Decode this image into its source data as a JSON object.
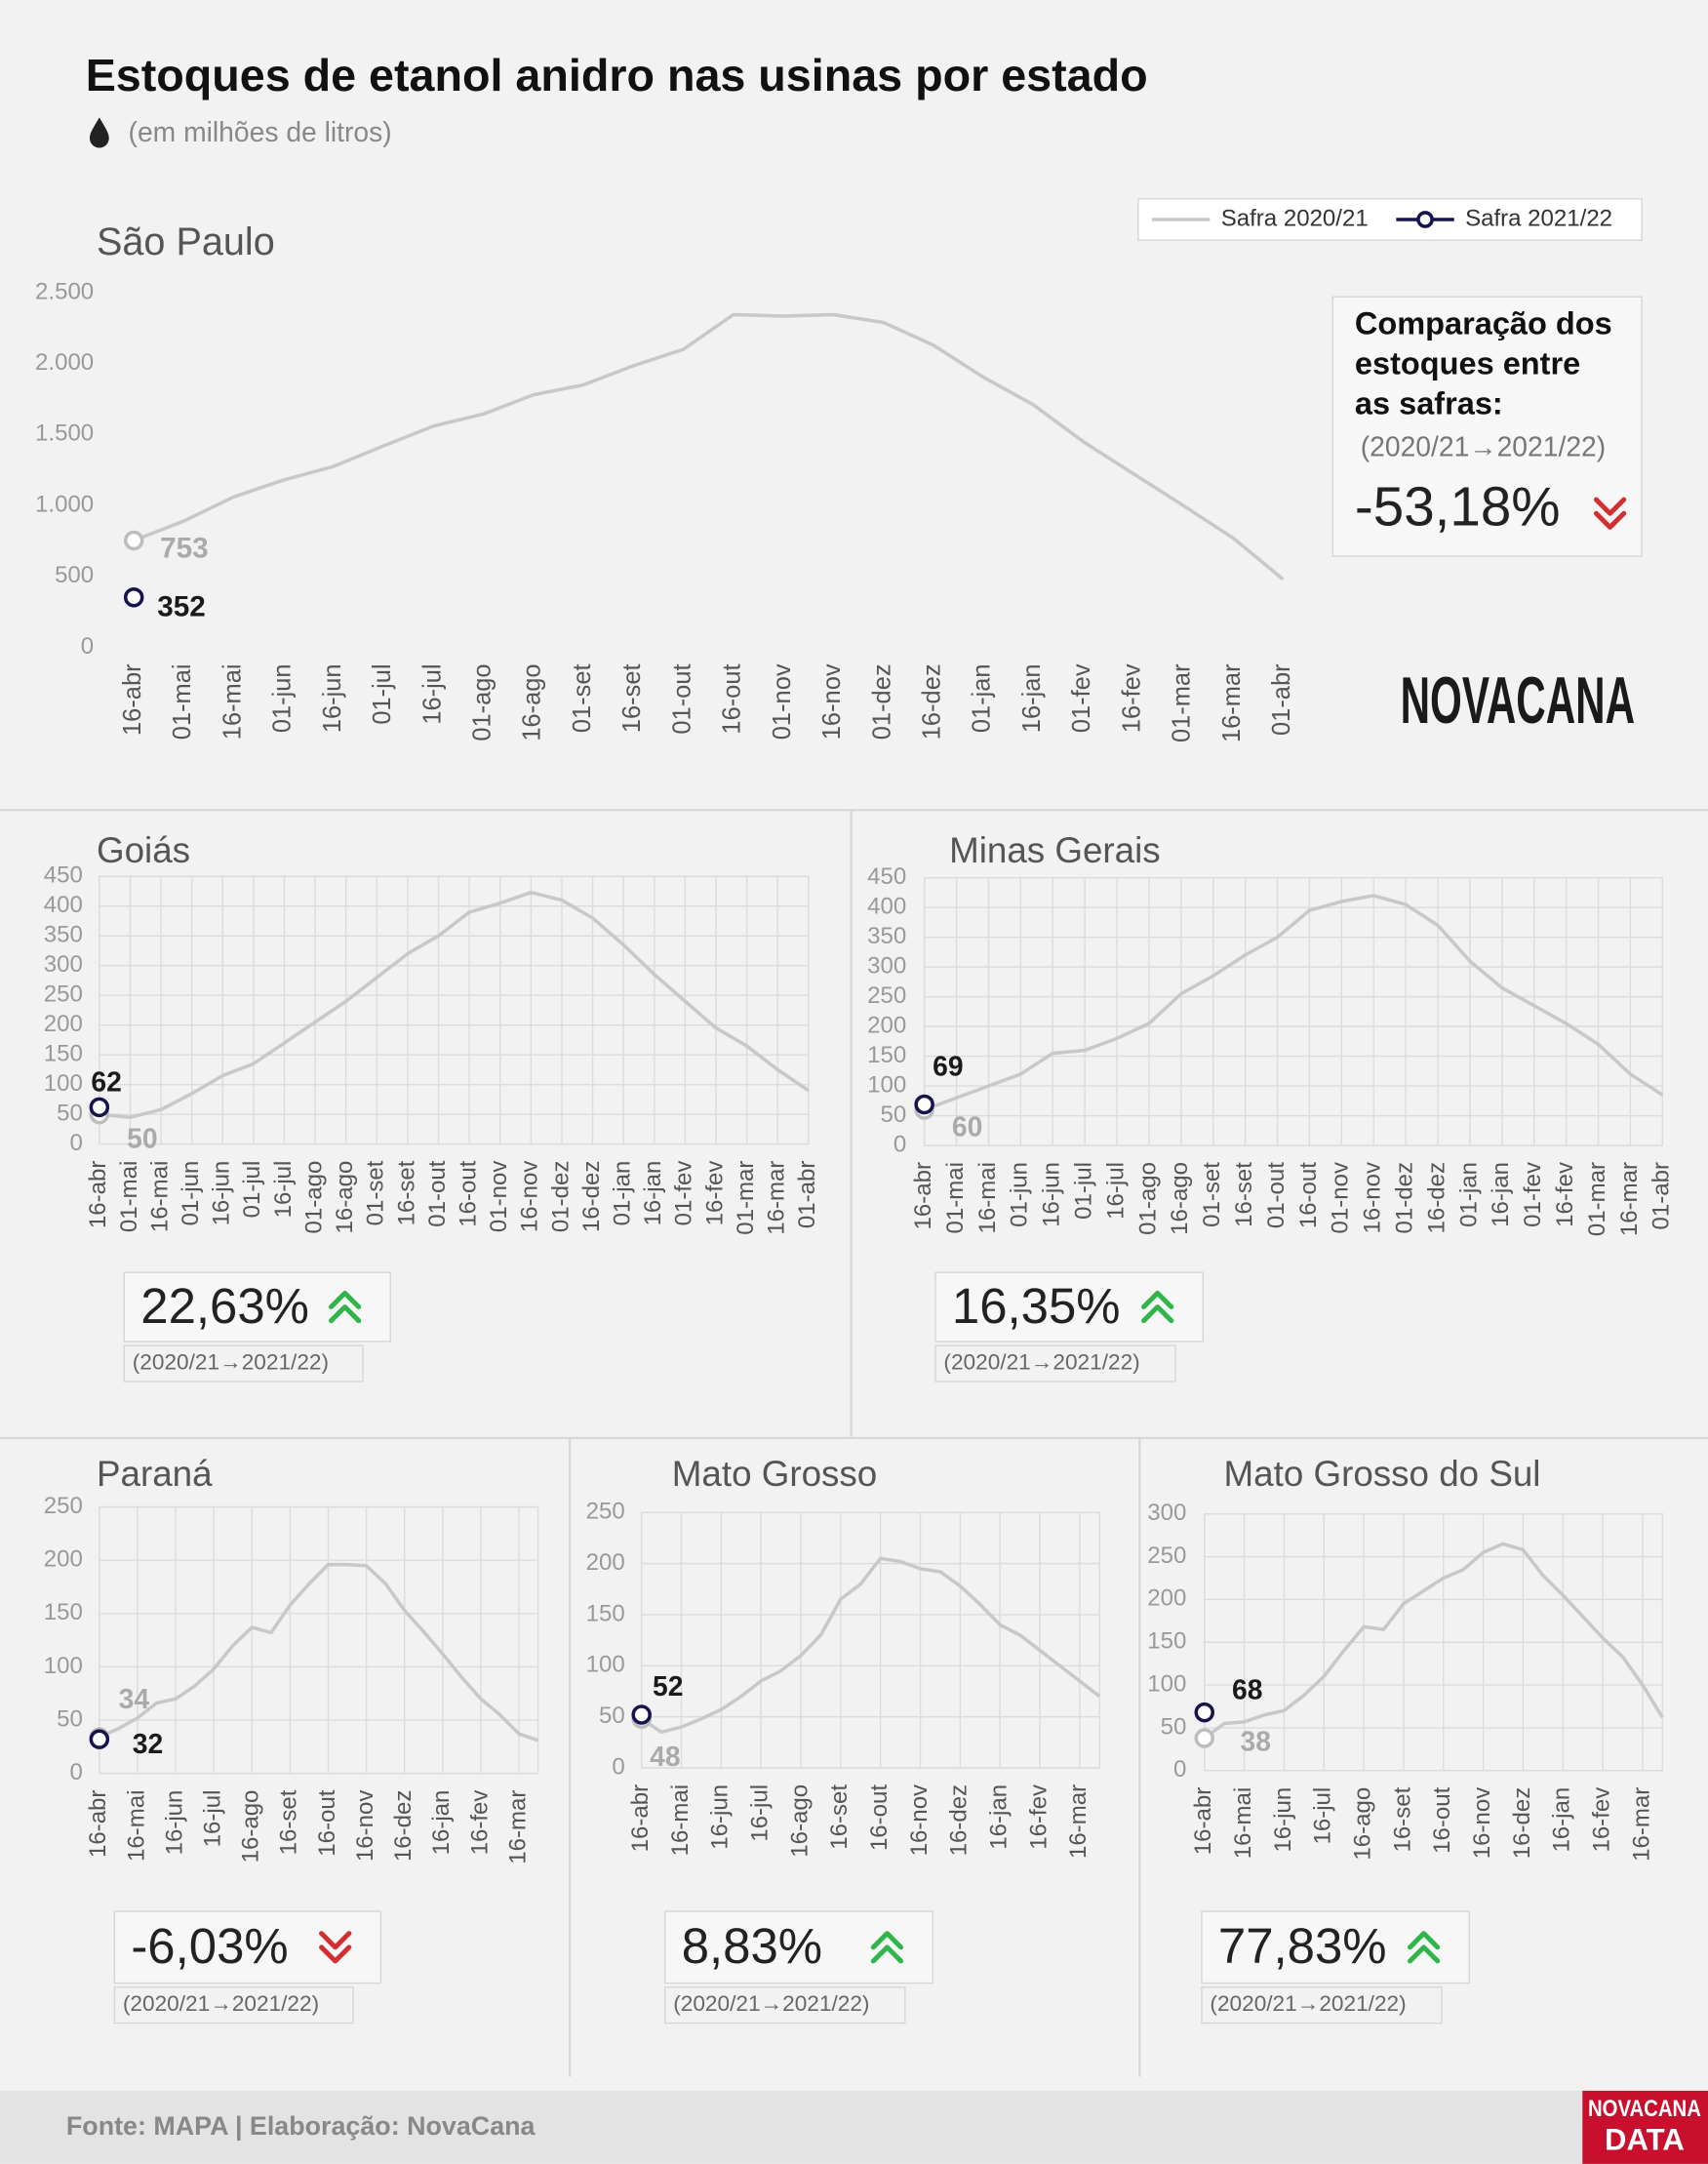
{
  "header": {
    "title": "Estoques de etanol anidro nas usinas por estado",
    "subtitle": "(em milhões de litros)"
  },
  "chart_data": [
    {
      "type": "line",
      "title": "São Paulo",
      "categories": [
        "16-abr",
        "01-mai",
        "16-mai",
        "01-jun",
        "16-jun",
        "01-jul",
        "16-jul",
        "01-ago",
        "16-ago",
        "01-set",
        "16-set",
        "01-out",
        "16-out",
        "01-nov",
        "16-nov",
        "01-dez",
        "16-dez",
        "01-jan",
        "16-jan",
        "01-fev",
        "16-fev",
        "01-mar",
        "16-mar",
        "01-abr"
      ],
      "series": [
        {
          "name": "Safra 2020/21",
          "color": "#c8c8c8",
          "values": [
            753,
            890,
            1060,
            1180,
            1275,
            1420,
            1560,
            1645,
            1780,
            1850,
            1985,
            2100,
            2345,
            2335,
            2345,
            2290,
            2130,
            1905,
            1710,
            1450,
            1225,
            1000,
            770,
            480
          ]
        },
        {
          "name": "Safra 2021/22",
          "color": "#16134d",
          "values": [
            352,
            null,
            null,
            null,
            null,
            null,
            null,
            null,
            null,
            null,
            null,
            null,
            null,
            null,
            null,
            null,
            null,
            null,
            null,
            null,
            null,
            null,
            null,
            null
          ]
        }
      ],
      "ylim": [
        0,
        2500
      ],
      "yticks": [
        0,
        500,
        {
          "value": 1000,
          "label": "1.000"
        },
        {
          "value": 1500,
          "label": "1.500"
        },
        {
          "value": 2000,
          "label": "2.000"
        },
        {
          "value": 2500,
          "label": "2.500"
        }
      ],
      "grid": false,
      "legend": "top-right",
      "comparison_heading": [
        "Comparação dos",
        "estoques entre",
        "as safras:"
      ],
      "comparison_period": "(2020/21→2021/22)",
      "comparison": "-53,18%"
    },
    {
      "type": "line",
      "title": "Goiás",
      "categories": [
        "16-abr",
        "01-mai",
        "16-mai",
        "01-jun",
        "16-jun",
        "01-jul",
        "16-jul",
        "01-ago",
        "16-ago",
        "01-set",
        "16-set",
        "01-out",
        "16-out",
        "01-nov",
        "16-nov",
        "01-dez",
        "16-dez",
        "01-jan",
        "16-jan",
        "01-fev",
        "16-fev",
        "01-mar",
        "16-mar",
        "01-abr"
      ],
      "series": [
        {
          "name": "Safra 2020/21",
          "color": "#c8c8c8",
          "values": [
            50,
            45,
            58,
            85,
            115,
            135,
            170,
            205,
            240,
            280,
            320,
            350,
            390,
            405,
            423,
            410,
            380,
            335,
            285,
            240,
            195,
            165,
            125,
            90
          ]
        },
        {
          "name": "Safra 2021/22",
          "color": "#16134d",
          "values": [
            62,
            null,
            null,
            null,
            null,
            null,
            null,
            null,
            null,
            null,
            null,
            null,
            null,
            null,
            null,
            null,
            null,
            null,
            null,
            null,
            null,
            null,
            null,
            null
          ]
        }
      ],
      "ylim": [
        0,
        450
      ],
      "yticks": [
        0,
        50,
        100,
        150,
        200,
        250,
        300,
        350,
        400,
        450
      ],
      "grid": true,
      "comparison_period": "(2020/21→2021/22)",
      "comparison": "22,63%"
    },
    {
      "type": "line",
      "title": "Minas Gerais",
      "categories": [
        "16-abr",
        "01-mai",
        "16-mai",
        "01-jun",
        "16-jun",
        "01-jul",
        "16-jul",
        "01-ago",
        "16-ago",
        "01-set",
        "16-set",
        "01-out",
        "16-out",
        "01-nov",
        "16-nov",
        "01-dez",
        "16-dez",
        "01-jan",
        "16-jan",
        "01-fev",
        "16-fev",
        "01-mar",
        "16-mar",
        "01-abr"
      ],
      "series": [
        {
          "name": "Safra 2020/21",
          "color": "#c8c8c8",
          "values": [
            60,
            80,
            100,
            120,
            155,
            160,
            180,
            205,
            255,
            285,
            320,
            350,
            395,
            410,
            420,
            405,
            370,
            310,
            265,
            235,
            205,
            170,
            120,
            85
          ]
        },
        {
          "name": "Safra 2021/22",
          "color": "#16134d",
          "values": [
            69,
            null,
            null,
            null,
            null,
            null,
            null,
            null,
            null,
            null,
            null,
            null,
            null,
            null,
            null,
            null,
            null,
            null,
            null,
            null,
            null,
            null,
            null,
            null
          ]
        }
      ],
      "ylim": [
        0,
        450
      ],
      "yticks": [
        0,
        50,
        100,
        150,
        200,
        250,
        300,
        350,
        400,
        450
      ],
      "grid": true,
      "comparison_period": "(2020/21→2021/22)",
      "comparison": "16,35%"
    },
    {
      "type": "line",
      "title": "Paraná",
      "categories": [
        "16-abr",
        null,
        "16-mai",
        null,
        "16-jun",
        null,
        "16-jul",
        null,
        "16-ago",
        null,
        "16-set",
        null,
        "16-out",
        null,
        "16-nov",
        null,
        "16-dez",
        null,
        "16-jan",
        null,
        "16-fev",
        null,
        "16-mar",
        null
      ],
      "series": [
        {
          "name": "Safra 2020/21",
          "color": "#c8c8c8",
          "values": [
            34,
            42,
            52,
            66,
            70,
            82,
            98,
            120,
            137,
            132,
            158,
            178,
            196,
            196,
            195,
            178,
            153,
            133,
            112,
            90,
            70,
            55,
            37,
            31
          ]
        },
        {
          "name": "Safra 2021/22",
          "color": "#16134d",
          "values": [
            32,
            null,
            null,
            null,
            null,
            null,
            null,
            null,
            null,
            null,
            null,
            null,
            null,
            null,
            null,
            null,
            null,
            null,
            null,
            null,
            null,
            null,
            null,
            null
          ]
        }
      ],
      "ylim": [
        0,
        250
      ],
      "yticks": [
        0,
        50,
        100,
        150,
        200,
        250
      ],
      "grid": true,
      "comparison_period": "(2020/21→2021/22)",
      "comparison": "-6,03%"
    },
    {
      "type": "line",
      "title": "Mato Grosso",
      "categories": [
        "16-abr",
        null,
        "16-mai",
        null,
        "16-jun",
        null,
        "16-jul",
        null,
        "16-ago",
        null,
        "16-set",
        null,
        "16-out",
        null,
        "16-nov",
        null,
        "16-dez",
        null,
        "16-jan",
        null,
        "16-fev",
        null,
        "16-mar",
        null
      ],
      "series": [
        {
          "name": "Safra 2020/21",
          "color": "#c8c8c8",
          "values": [
            48,
            35,
            40,
            48,
            57,
            70,
            85,
            95,
            110,
            130,
            165,
            180,
            205,
            202,
            195,
            192,
            178,
            160,
            140,
            130,
            115,
            100,
            85,
            70
          ]
        },
        {
          "name": "Safra 2021/22",
          "color": "#16134d",
          "values": [
            52,
            null,
            null,
            null,
            null,
            null,
            null,
            null,
            null,
            null,
            null,
            null,
            null,
            null,
            null,
            null,
            null,
            null,
            null,
            null,
            null,
            null,
            null,
            null
          ]
        }
      ],
      "ylim": [
        0,
        250
      ],
      "yticks": [
        0,
        50,
        100,
        150,
        200,
        250
      ],
      "grid": true,
      "comparison_period": "(2020/21→2021/22)",
      "comparison": "8,83%"
    },
    {
      "type": "line",
      "title": "Mato Grosso do Sul",
      "categories": [
        "16-abr",
        null,
        "16-mai",
        null,
        "16-jun",
        null,
        "16-jul",
        null,
        "16-ago",
        null,
        "16-set",
        null,
        "16-out",
        null,
        "16-nov",
        null,
        "16-dez",
        null,
        "16-jan",
        null,
        "16-fev",
        null,
        "16-mar",
        null
      ],
      "series": [
        {
          "name": "Safra 2020/21",
          "color": "#c8c8c8",
          "values": [
            38,
            55,
            57,
            65,
            70,
            88,
            110,
            140,
            168,
            165,
            195,
            210,
            225,
            235,
            255,
            265,
            258,
            228,
            205,
            180,
            155,
            133,
            100,
            62
          ]
        },
        {
          "name": "Safra 2021/22",
          "color": "#16134d",
          "values": [
            68,
            null,
            null,
            null,
            null,
            null,
            null,
            null,
            null,
            null,
            null,
            null,
            null,
            null,
            null,
            null,
            null,
            null,
            null,
            null,
            null,
            null,
            null,
            null
          ]
        }
      ],
      "ylim": [
        0,
        300
      ],
      "yticks": [
        0,
        50,
        100,
        150,
        200,
        250,
        300
      ],
      "grid": true,
      "comparison_period": "(2020/21→2021/22)",
      "comparison": "77,83%"
    }
  ],
  "footer": {
    "source": "Fonte: MAPA  | Elaboração: NovaCana",
    "logo": "NOVACANA",
    "badge": [
      "NOVACANA",
      "DATA"
    ]
  }
}
